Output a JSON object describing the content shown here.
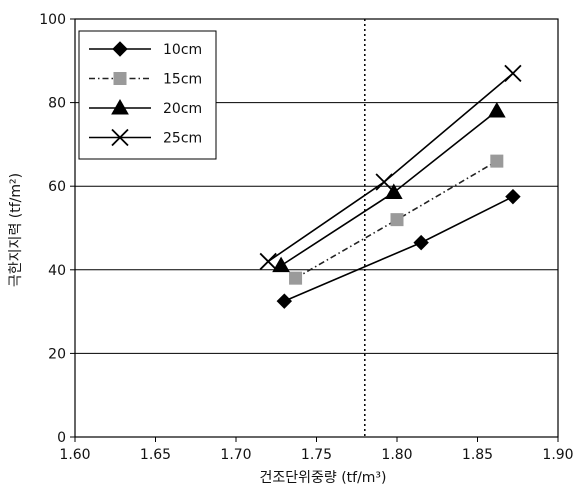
{
  "chart_data": {
    "type": "line",
    "title": "",
    "xlabel": "건조단위중량 (tf/m³)",
    "ylabel": "극한지지력 (tf/m²)",
    "xlim": [
      1.6,
      1.9
    ],
    "ylim": [
      0,
      100
    ],
    "x_ticks": [
      "1.60",
      "1.65",
      "1.70",
      "1.75",
      "1.80",
      "1.85",
      "1.90"
    ],
    "y_ticks": [
      "0",
      "20",
      "40",
      "60",
      "80",
      "100"
    ],
    "grid": "horizontal",
    "reference_line_x": 1.78,
    "legend_position": "top-left",
    "series": [
      {
        "name": "10cm",
        "marker": "diamond",
        "color": "#000000",
        "dash": "solid",
        "x": [
          1.73,
          1.815,
          1.872
        ],
        "y": [
          32.5,
          46.5,
          57.5
        ]
      },
      {
        "name": "15cm",
        "marker": "square",
        "color": "#9a9a9a",
        "dash": "dash-dot",
        "x": [
          1.737,
          1.8,
          1.862
        ],
        "y": [
          38.0,
          52.0,
          66.0
        ]
      },
      {
        "name": "20cm",
        "marker": "triangle",
        "color": "#000000",
        "dash": "solid",
        "x": [
          1.728,
          1.798,
          1.862
        ],
        "y": [
          41.0,
          58.5,
          78.0
        ]
      },
      {
        "name": "25cm",
        "marker": "x",
        "color": "#000000",
        "dash": "solid",
        "x": [
          1.72,
          1.792,
          1.872
        ],
        "y": [
          42.0,
          61.0,
          87.0
        ]
      }
    ]
  }
}
